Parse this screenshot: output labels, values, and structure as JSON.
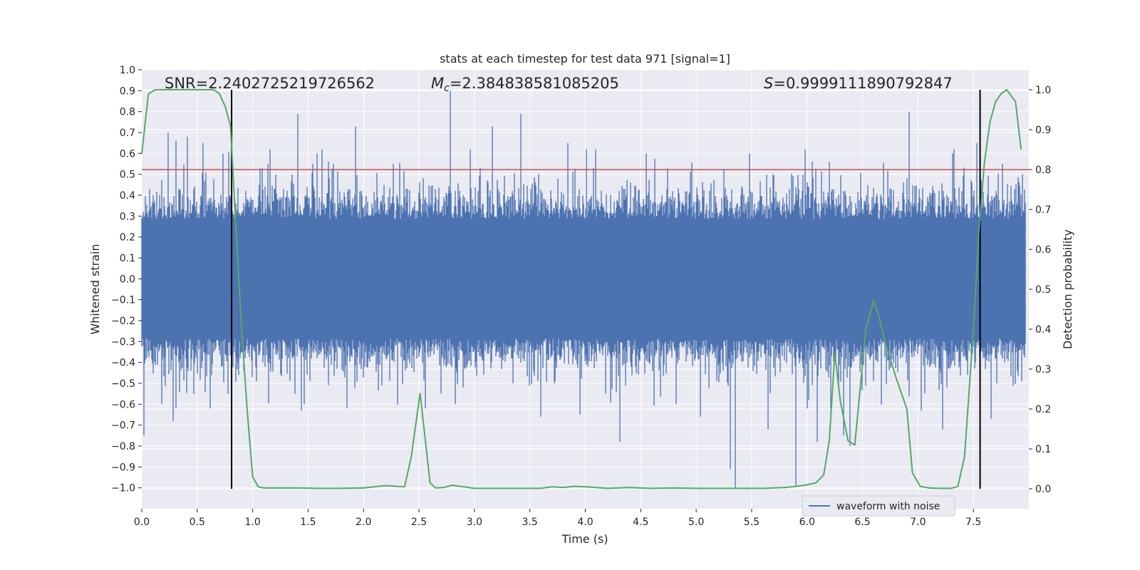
{
  "chart_data": {
    "type": "line",
    "title": "stats at each timestep for test data 971 [signal=1]",
    "xlabel": "Time (s)",
    "ylabel": "Whitened strain",
    "y2label": "Detection probability",
    "xlim": [
      0.0,
      8.0
    ],
    "ylim": [
      -1.1,
      1.0
    ],
    "y2lim": [
      -0.05,
      1.05
    ],
    "xticks": [
      "0.0",
      "0.5",
      "1.0",
      "1.5",
      "2.0",
      "2.5",
      "3.0",
      "3.5",
      "4.0",
      "4.5",
      "5.0",
      "5.5",
      "6.0",
      "6.5",
      "7.0",
      "7.5"
    ],
    "yticks": [
      "1.0",
      "0.9",
      "0.8",
      "0.7",
      "0.6",
      "0.5",
      "0.4",
      "0.3",
      "0.2",
      "0.1",
      "0.0",
      "−0.1",
      "−0.2",
      "−0.3",
      "−0.4",
      "−0.5",
      "−0.6",
      "−0.7",
      "−0.8",
      "−0.9",
      "−1.0"
    ],
    "y2ticks": [
      "1.0",
      "0.9",
      "0.8",
      "0.7",
      "0.6",
      "0.5",
      "0.4",
      "0.3",
      "0.2",
      "0.1",
      "0.0"
    ],
    "grid": true,
    "legend_position": "bottom-right",
    "annotations": {
      "snr_text": "SNR=2.2402725219726562",
      "mc_prefix": "M",
      "mc_sub": "c",
      "mc_value": "=2.384838581085205",
      "s_prefix": "S",
      "s_value": "=0.9999111890792847"
    },
    "vertical_lines_x": [
      0.81,
      7.56
    ],
    "threshold_y2": 0.8,
    "series": [
      {
        "name": "waveform with noise",
        "role": "strain",
        "color": "#4c72b0",
        "noise_envelope": {
          "typical": 0.38,
          "min_peak": -1.0,
          "max_peak": 0.9
        },
        "spikes": [
          [
            0.02,
            -0.75
          ],
          [
            0.07,
            0.43
          ],
          [
            0.18,
            -0.6
          ],
          [
            0.24,
            0.7
          ],
          [
            0.28,
            -0.68
          ],
          [
            0.31,
            0.66
          ],
          [
            0.41,
            0.68
          ],
          [
            0.47,
            -0.55
          ],
          [
            0.55,
            0.65
          ],
          [
            0.62,
            -0.62
          ],
          [
            0.73,
            0.6
          ],
          [
            0.78,
            -0.55
          ],
          [
            1.14,
            0.55
          ],
          [
            1.38,
            -0.55
          ],
          [
            1.41,
            0.79
          ],
          [
            1.44,
            -0.63
          ],
          [
            1.58,
            0.6
          ],
          [
            1.73,
            0.55
          ],
          [
            1.93,
            0.73
          ],
          [
            2.27,
            0.55
          ],
          [
            2.56,
            -0.62
          ],
          [
            2.78,
            0.9
          ],
          [
            2.83,
            -0.6
          ],
          [
            3.16,
            0.73
          ],
          [
            3.42,
            0.79
          ],
          [
            3.6,
            -0.66
          ],
          [
            3.84,
            0.65
          ],
          [
            3.95,
            -0.65
          ],
          [
            4.09,
            0.62
          ],
          [
            4.31,
            -0.78
          ],
          [
            4.55,
            0.6
          ],
          [
            4.82,
            -0.6
          ],
          [
            5.04,
            -0.66
          ],
          [
            5.31,
            -0.91
          ],
          [
            5.35,
            -1.0
          ],
          [
            5.48,
            0.6
          ],
          [
            5.65,
            -0.72
          ],
          [
            5.9,
            -0.99
          ],
          [
            5.98,
            0.62
          ],
          [
            6.09,
            -0.78
          ],
          [
            6.2,
            0.56
          ],
          [
            6.33,
            -0.75
          ],
          [
            6.39,
            -0.8
          ],
          [
            6.92,
            0.8
          ],
          [
            7.03,
            -0.63
          ],
          [
            7.22,
            -0.72
          ],
          [
            7.31,
            0.6
          ],
          [
            7.53,
            0.65
          ],
          [
            7.66,
            -0.67
          ],
          [
            7.76,
            0.55
          ],
          [
            7.98,
            -0.68
          ]
        ]
      },
      {
        "name": "",
        "role": "detection probability",
        "color": "#55a868",
        "x": [
          0.0,
          0.06,
          0.12,
          0.2,
          0.3,
          0.4,
          0.5,
          0.6,
          0.65,
          0.7,
          0.75,
          0.8,
          0.85,
          0.9,
          0.95,
          1.0,
          1.05,
          1.1,
          1.2,
          1.4,
          1.6,
          1.8,
          2.0,
          2.2,
          2.3,
          2.37,
          2.43,
          2.51,
          2.6,
          2.65,
          2.72,
          2.8,
          3.0,
          3.2,
          3.4,
          3.6,
          3.7,
          3.8,
          3.9,
          4.0,
          4.2,
          4.4,
          4.6,
          4.8,
          5.0,
          5.2,
          5.4,
          5.6,
          5.8,
          5.9,
          6.0,
          6.08,
          6.15,
          6.2,
          6.25,
          6.3,
          6.37,
          6.43,
          6.53,
          6.6,
          6.65,
          6.7,
          6.8,
          6.9,
          6.95,
          7.02,
          7.1,
          7.2,
          7.3,
          7.36,
          7.42,
          7.5,
          7.55,
          7.6,
          7.65,
          7.7,
          7.75,
          7.8,
          7.88,
          7.93
        ],
        "y": [
          0.84,
          0.99,
          1.0,
          1.0,
          1.0,
          1.0,
          1.0,
          1.0,
          1.0,
          0.99,
          0.96,
          0.91,
          0.65,
          0.4,
          0.2,
          0.03,
          0.005,
          0.002,
          0.002,
          0.002,
          0.001,
          0.001,
          0.002,
          0.008,
          0.006,
          0.005,
          0.08,
          0.24,
          0.015,
          0.002,
          0.003,
          0.009,
          0.001,
          0.001,
          0.001,
          0.001,
          0.005,
          0.003,
          0.006,
          0.005,
          0.001,
          0.003,
          0.001,
          0.002,
          0.001,
          0.001,
          0.001,
          0.001,
          0.003,
          0.006,
          0.01,
          0.015,
          0.035,
          0.12,
          0.34,
          0.22,
          0.12,
          0.11,
          0.4,
          0.47,
          0.43,
          0.37,
          0.28,
          0.2,
          0.04,
          0.006,
          0.002,
          0.001,
          0.001,
          0.006,
          0.08,
          0.4,
          0.65,
          0.82,
          0.92,
          0.97,
          0.99,
          1.0,
          0.97,
          0.85
        ]
      }
    ]
  }
}
